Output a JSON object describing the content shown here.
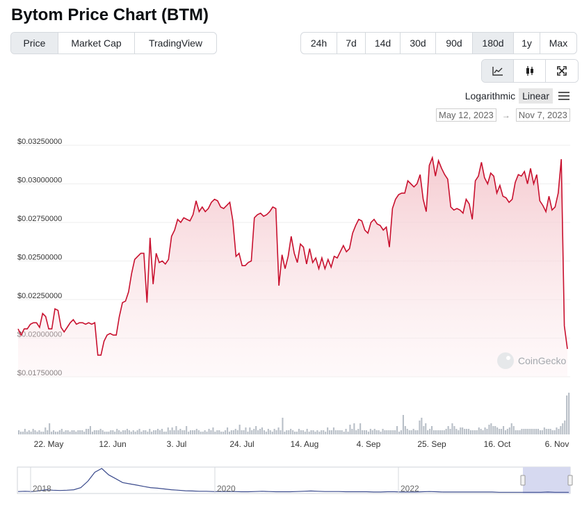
{
  "title": "Bytom Price Chart (BTM)",
  "type_tabs": [
    {
      "label": "Price",
      "active": true
    },
    {
      "label": "Market Cap",
      "active": false
    },
    {
      "label": "TradingView",
      "active": false
    }
  ],
  "range_tabs": [
    {
      "label": "24h",
      "active": false
    },
    {
      "label": "7d",
      "active": false
    },
    {
      "label": "14d",
      "active": false
    },
    {
      "label": "30d",
      "active": false
    },
    {
      "label": "90d",
      "active": false
    },
    {
      "label": "180d",
      "active": true
    },
    {
      "label": "1y",
      "active": false
    },
    {
      "label": "Max",
      "active": false
    }
  ],
  "chart_type_icons": [
    {
      "name": "line-chart-icon",
      "active": true
    },
    {
      "name": "candlestick-icon",
      "active": false
    },
    {
      "name": "fullscreen-icon",
      "active": false
    }
  ],
  "scale": {
    "logarithmic": "Logarithmic",
    "linear": "Linear",
    "active": "Linear"
  },
  "date_range": {
    "from": "May 12, 2023",
    "to": "Nov 7, 2023"
  },
  "watermark": "CoinGecko",
  "colors": {
    "line": "#c8102e",
    "fill_top": "#f4c6cc",
    "volume": "#b8bfc7",
    "navigator": "#3a4a8c",
    "nav_select": "#d6d9f0"
  },
  "chart_data": {
    "type": "line",
    "title": "Bytom Price Chart (BTM)",
    "ylim": [
      0.0175,
      0.0325
    ],
    "y_tick_labels": [
      "$0.03250000",
      "$0.03000000",
      "$0.02750000",
      "$0.02500000",
      "$0.02250000",
      "$0.02000000",
      "$0.01750000"
    ],
    "x_tick_labels": [
      "22. May",
      "12. Jun",
      "3. Jul",
      "24. Jul",
      "14. Aug",
      "4. Sep",
      "25. Sep",
      "16. Oct",
      "6. Nov"
    ],
    "series": [
      {
        "values": [
          0.0206,
          0.0202,
          0.0206,
          0.0206,
          0.0209,
          0.021,
          0.021,
          0.0207,
          0.0216,
          0.0214,
          0.0206,
          0.0206,
          0.0219,
          0.0218,
          0.0207,
          0.0204,
          0.0207,
          0.021,
          0.0212,
          0.0209,
          0.021,
          0.021,
          0.0209,
          0.021,
          0.0209,
          0.021,
          0.0189,
          0.0189,
          0.0198,
          0.0202,
          0.0203,
          0.0202,
          0.0202,
          0.0214,
          0.0223,
          0.0224,
          0.023,
          0.0242,
          0.0251,
          0.0253,
          0.0255,
          0.0255,
          0.0223,
          0.0265,
          0.0235,
          0.0255,
          0.0249,
          0.025,
          0.0248,
          0.0251,
          0.0266,
          0.027,
          0.0277,
          0.0275,
          0.0278,
          0.0277,
          0.0276,
          0.028,
          0.0289,
          0.0282,
          0.0285,
          0.0282,
          0.0284,
          0.0288,
          0.029,
          0.0289,
          0.0285,
          0.0284,
          0.0286,
          0.0288,
          0.0276,
          0.0253,
          0.0255,
          0.0247,
          0.0247,
          0.0249,
          0.025,
          0.0278,
          0.028,
          0.0281,
          0.0279,
          0.028,
          0.0282,
          0.0285,
          0.0284,
          0.0234,
          0.0254,
          0.0245,
          0.0253,
          0.0266,
          0.0255,
          0.0249,
          0.0261,
          0.0259,
          0.0248,
          0.0258,
          0.0249,
          0.0252,
          0.0245,
          0.0252,
          0.0245,
          0.0251,
          0.0246,
          0.0253,
          0.0252,
          0.0256,
          0.026,
          0.0256,
          0.0258,
          0.0268,
          0.0273,
          0.0277,
          0.0276,
          0.027,
          0.0268,
          0.0275,
          0.0277,
          0.0274,
          0.0273,
          0.027,
          0.0272,
          0.0259,
          0.0284,
          0.029,
          0.0293,
          0.0294,
          0.0294,
          0.0302,
          0.03,
          0.0298,
          0.03,
          0.0306,
          0.029,
          0.0282,
          0.0312,
          0.0317,
          0.0305,
          0.0315,
          0.031,
          0.0306,
          0.0303,
          0.0285,
          0.0283,
          0.0284,
          0.0283,
          0.0281,
          0.029,
          0.0287,
          0.0277,
          0.0302,
          0.0305,
          0.0314,
          0.0304,
          0.03,
          0.0307,
          0.0305,
          0.0294,
          0.0299,
          0.0292,
          0.0291,
          0.0288,
          0.029,
          0.0301,
          0.0306,
          0.0305,
          0.0308,
          0.03,
          0.031,
          0.03,
          0.0306,
          0.0289,
          0.0286,
          0.0282,
          0.0292,
          0.0283,
          0.0285,
          0.0294,
          0.0316,
          0.0208,
          0.0193
        ]
      }
    ],
    "volume": [
      3,
      2,
      2,
      4,
      2,
      3,
      2,
      4,
      3,
      2,
      3,
      2,
      2,
      5,
      3,
      8,
      2,
      3,
      2,
      2,
      3,
      4,
      2,
      3,
      3,
      2,
      3,
      3,
      2,
      3,
      3,
      3,
      2,
      4,
      4,
      6,
      2,
      3,
      3,
      3,
      4,
      3,
      2,
      2,
      2,
      3,
      3,
      2,
      4,
      3,
      2,
      3,
      3,
      4,
      3,
      2,
      3,
      2,
      3,
      4,
      2,
      3,
      3,
      2,
      4,
      2,
      3,
      3,
      4,
      3,
      4,
      2,
      2,
      5,
      3,
      5,
      3,
      6,
      3,
      4,
      3,
      3,
      6,
      2,
      3,
      3,
      3,
      4,
      3,
      2,
      2,
      3,
      2,
      4,
      3,
      5,
      2,
      3,
      3,
      2,
      2,
      3,
      5,
      2,
      3,
      3,
      4,
      3,
      7,
      3,
      3,
      5,
      2,
      5,
      3,
      4,
      6,
      3,
      4,
      5,
      3,
      2,
      4,
      3,
      2,
      4,
      3,
      5,
      3,
      12,
      2,
      3,
      3,
      4,
      3,
      2,
      2,
      4,
      3,
      3,
      2,
      4,
      2,
      3,
      3,
      2,
      3,
      2,
      3,
      3,
      2,
      5,
      3,
      3,
      5,
      3,
      3,
      3,
      3,
      2,
      4,
      2,
      7,
      4,
      8,
      3,
      4,
      8,
      3,
      3,
      3,
      2,
      4,
      3,
      4,
      3,
      3,
      2,
      4,
      3,
      3,
      3,
      3,
      3,
      3,
      6,
      2,
      3,
      14,
      6,
      4,
      3,
      3,
      4,
      3,
      3,
      10,
      12,
      6,
      8,
      3,
      4,
      6,
      3,
      3,
      3,
      3,
      3,
      3,
      4,
      6,
      4,
      8,
      6,
      4,
      3,
      5,
      5,
      4,
      4,
      4,
      3,
      3,
      3,
      3,
      5,
      4,
      3,
      5,
      4,
      7,
      8,
      6,
      6,
      5,
      4,
      4,
      6,
      3,
      4,
      5,
      8,
      6,
      3,
      3,
      3,
      4,
      4,
      4,
      4,
      4,
      4,
      4,
      4,
      4,
      3,
      3,
      5,
      4,
      4,
      4,
      3,
      3,
      5,
      4,
      6,
      8,
      10,
      28,
      30
    ]
  },
  "navigator": {
    "year_labels": [
      "2018",
      "2020",
      "2022"
    ],
    "values": [
      0.05,
      0.06,
      0.05,
      0.08,
      0.12,
      0.1,
      0.09,
      0.1,
      0.12,
      0.2,
      0.45,
      0.8,
      0.95,
      0.7,
      0.55,
      0.4,
      0.35,
      0.3,
      0.25,
      0.2,
      0.18,
      0.15,
      0.12,
      0.1,
      0.08,
      0.07,
      0.06,
      0.06,
      0.05,
      0.05,
      0.05,
      0.05,
      0.04,
      0.04,
      0.05,
      0.06,
      0.05,
      0.04,
      0.04,
      0.04,
      0.05,
      0.06,
      0.07,
      0.06,
      0.05,
      0.05,
      0.05,
      0.04,
      0.04,
      0.04,
      0.04,
      0.03,
      0.03,
      0.04,
      0.04,
      0.03,
      0.03,
      0.03,
      0.04,
      0.05,
      0.04,
      0.03,
      0.03,
      0.03,
      0.03,
      0.03,
      0.03,
      0.03,
      0.03,
      0.02,
      0.02,
      0.02,
      0.02,
      0.02,
      0.02,
      0.02,
      0.03,
      0.02,
      0.02,
      0.02
    ]
  }
}
